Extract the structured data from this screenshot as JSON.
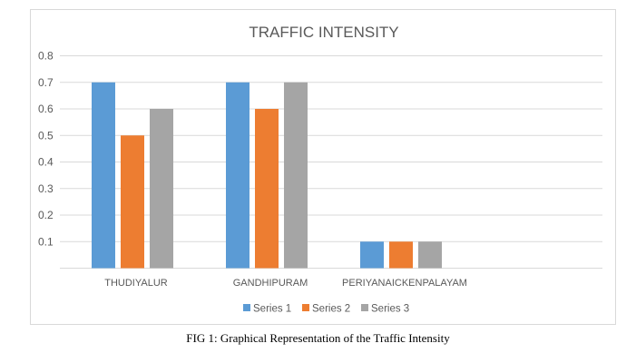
{
  "chart_data": {
    "type": "bar",
    "title": "TRAFFIC INTENSITY",
    "categories": [
      "THUDIYALUR",
      "GANDHIPURAM",
      "PERIYANAICKENPALAYAM"
    ],
    "series": [
      {
        "name": "Series 1",
        "color": "#5b9bd5",
        "values": [
          0.7,
          0.7,
          0.1
        ]
      },
      {
        "name": "Series 2",
        "color": "#ed7d31",
        "values": [
          0.5,
          0.6,
          0.1
        ]
      },
      {
        "name": "Series 3",
        "color": "#a5a5a5",
        "values": [
          0.6,
          0.7,
          0.1
        ]
      }
    ],
    "y_ticks": [
      "0.1",
      "0.2",
      "0.3",
      "0.4",
      "0.5",
      "0.6",
      "0.7",
      "0.8"
    ],
    "xlabel": "",
    "ylabel": "",
    "ylim": [
      0,
      0.8
    ],
    "grid": true,
    "legend_position": "bottom"
  },
  "caption": "FIG 1: Graphical Representation of the Traffic Intensity"
}
